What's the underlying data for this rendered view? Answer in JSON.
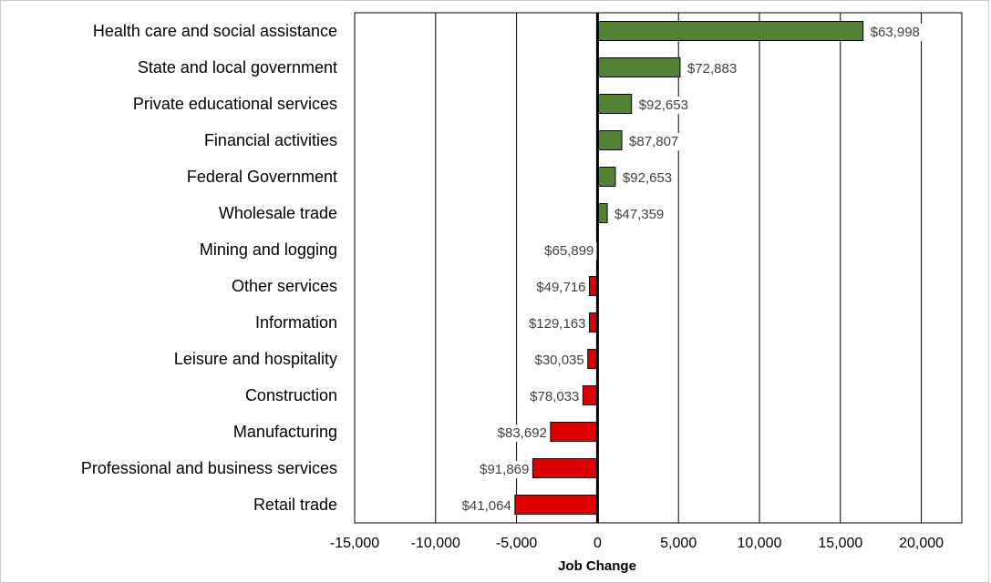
{
  "chart_data": {
    "type": "bar",
    "orientation": "horizontal",
    "title": "",
    "xlabel": "Job Change",
    "ylabel": "",
    "xlim": [
      -15000,
      22500
    ],
    "xticks": [
      -15000,
      -10000,
      -5000,
      0,
      5000,
      10000,
      15000,
      20000
    ],
    "xtick_labels": [
      "-15,000",
      "-10,000",
      "-5,000",
      "0",
      "5,000",
      "10,000",
      "15,000",
      "20,000"
    ],
    "grid": "vertical",
    "legend": "none",
    "categories": [
      "Health care and social assistance",
      "State and local government",
      "Private educational services",
      "Financial activities",
      "Federal Government",
      "Wholesale trade",
      "Mining and logging",
      "Other services",
      "Information",
      "Leisure and hospitality",
      "Construction",
      "Manufacturing",
      "Professional and business services",
      "Retail trade"
    ],
    "values": [
      16400,
      5100,
      2100,
      1500,
      1100,
      600,
      0,
      -500,
      -500,
      -600,
      -900,
      -2900,
      -4000,
      -5100
    ],
    "data_labels": [
      "$63,998",
      "$72,883",
      "$92,653",
      "$87,807",
      "$92,653",
      "$47,359",
      "$65,899",
      "$49,716",
      "$129,163",
      "$30,035",
      "$78,033",
      "$83,692",
      "$91,869",
      "$41,064"
    ],
    "colors": {
      "positive": "#548235",
      "negative": "#dd0000",
      "outline": "#000000",
      "grid": "#000000"
    }
  }
}
